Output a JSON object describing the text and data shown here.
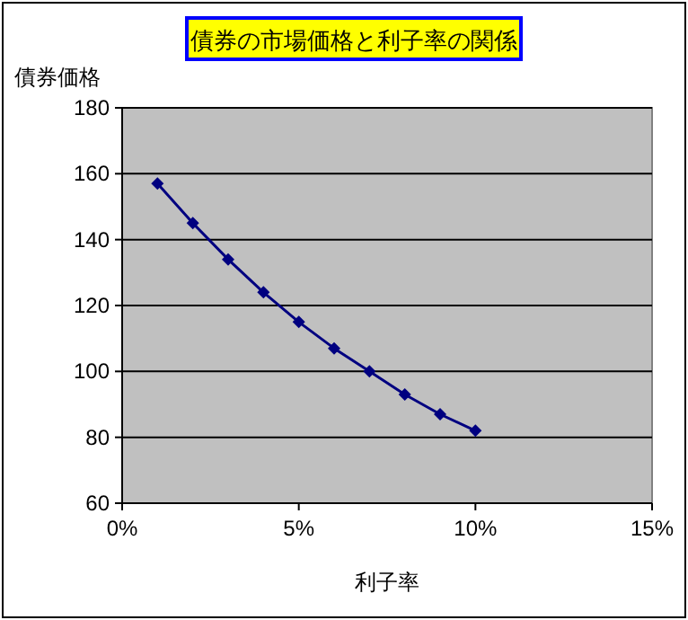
{
  "chart_data": {
    "type": "line",
    "title": "債券の市場価格と利子率の関係",
    "xlabel": "利子率",
    "ylabel": "債券価格",
    "x": [
      1,
      2,
      3,
      4,
      5,
      6,
      7,
      8,
      9,
      10
    ],
    "series": [
      {
        "color": "#000080",
        "values": [
          157,
          145,
          134,
          124,
          115,
          107,
          100,
          93,
          87,
          82
        ]
      }
    ],
    "xlim": [
      0,
      15
    ],
    "xticks": [
      {
        "value": 0,
        "label": "0%"
      },
      {
        "value": 5,
        "label": "5%"
      },
      {
        "value": 10,
        "label": "10%"
      },
      {
        "value": 15,
        "label": "15%"
      }
    ],
    "ylim": [
      60,
      180
    ],
    "yticks": [
      60,
      80,
      100,
      120,
      140,
      160,
      180
    ],
    "grid": "y",
    "marker": "diamond",
    "line_style": "solid"
  }
}
